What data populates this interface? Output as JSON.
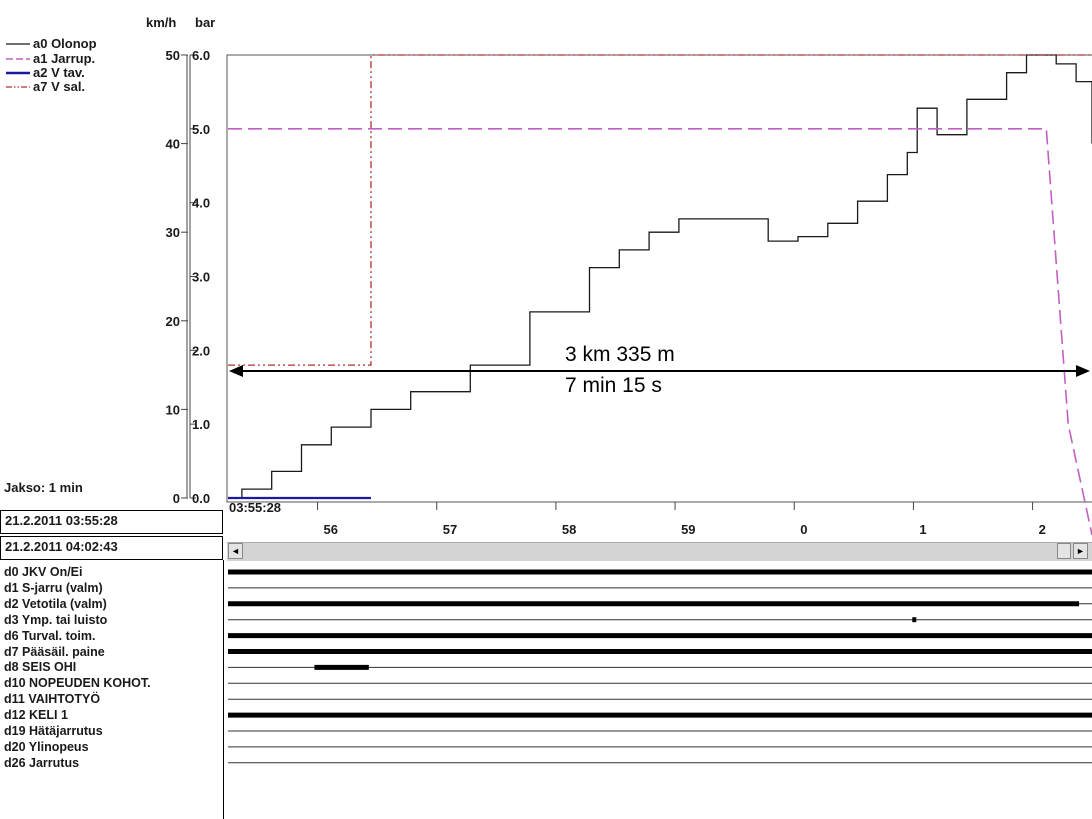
{
  "chart_data": {
    "type": "line",
    "axis_units_speed": "km/h",
    "axis_units_pressure": "bar",
    "speed_ticks": [
      "0",
      "10",
      "20",
      "30",
      "40",
      "50"
    ],
    "pressure_ticks": [
      "0.0",
      "1.0",
      "2.0",
      "3.0",
      "4.0",
      "5.0",
      "6.0"
    ],
    "speed_range": [
      0,
      50
    ],
    "pressure_range": [
      0,
      6.0
    ],
    "time_ticks": [
      "56",
      "57",
      "58",
      "59",
      "0",
      "1",
      "2"
    ],
    "start_time_label": "03:55:28",
    "period_label": "Jakso: 1 min",
    "legend": [
      {
        "name": "a0 Olonop",
        "color": "#1a1a1a",
        "dash": "solid"
      },
      {
        "name": "a1 Jarrup.",
        "color": "#c060c0",
        "dash": "dash"
      },
      {
        "name": "a2 V tav.",
        "color": "#1a1aa0",
        "dash": "solid"
      },
      {
        "name": "a7 V sal.",
        "color": "#b03030",
        "dash": "dashdot"
      }
    ],
    "series": [
      {
        "name": "a0 Olonop",
        "unit": "km/h",
        "x": [
          "03:55:28",
          "03:55:35",
          "03:55:50",
          "03:56:05",
          "03:56:20",
          "03:56:40",
          "03:57:00",
          "03:57:30",
          "03:58:00",
          "03:58:30",
          "03:58:45",
          "03:59:00",
          "03:59:15",
          "03:59:30",
          "03:59:45",
          "04:00:00",
          "04:00:15",
          "04:00:30",
          "04:00:45",
          "04:01:00",
          "04:01:10",
          "04:01:15",
          "04:01:25",
          "04:01:40",
          "04:02:00",
          "04:02:10",
          "04:02:25",
          "04:02:35",
          "04:02:43"
        ],
        "y": [
          0,
          1,
          3,
          6,
          8,
          10,
          12,
          15,
          21,
          26,
          28,
          30,
          31.5,
          31.5,
          31.5,
          29,
          29.5,
          31,
          33.5,
          36.5,
          39,
          44,
          41,
          45,
          48,
          50,
          49,
          47,
          40
        ]
      },
      {
        "name": "a1 Jarrup.",
        "unit": "bar",
        "x": [
          "03:55:28",
          "04:02:20",
          "04:02:31",
          "04:02:43"
        ],
        "y": [
          5.0,
          5.0,
          1.0,
          -0.5
        ]
      },
      {
        "name": "a2 V tav.",
        "unit": "km/h",
        "x": [
          "03:55:28",
          "03:56:40"
        ],
        "y": [
          0,
          0
        ]
      },
      {
        "name": "a7 V sal.",
        "unit": "km/h",
        "x": [
          "03:55:28",
          "03:56:40",
          "03:56:40",
          "04:02:43"
        ],
        "y": [
          15,
          15,
          50,
          50
        ]
      }
    ],
    "annotation": {
      "distance": "3 km 335 m",
      "duration": "7 min 15 s"
    }
  },
  "header": {
    "time_start": "21.2.2011 03:55:28",
    "time_end": "21.2.2011 04:02:43"
  },
  "scrollbar": {
    "left_arrow": "◄",
    "right_arrow": "►"
  },
  "digital_channels": [
    {
      "label": "d0 JKV On/Ei",
      "segments": [
        [
          0,
          1
        ]
      ]
    },
    {
      "label": "d1 S-jarru (valm)",
      "segments": []
    },
    {
      "label": "d2 Vetotila (valm)",
      "segments": [
        [
          0,
          0.985
        ]
      ]
    },
    {
      "label": "d3 Ymp. tai luisto",
      "segments": [
        [
          0.792,
          0.796
        ]
      ]
    },
    {
      "label": "d6 Turval. toim.",
      "segments": [
        [
          0,
          1
        ]
      ]
    },
    {
      "label": "d7 Pääsäil. paine",
      "segments": [
        [
          0,
          1
        ]
      ]
    },
    {
      "label": "d8 SEIS OHI",
      "segments": [
        [
          0.1,
          0.163
        ]
      ]
    },
    {
      "label": "d10 NOPEUDEN KOHOT.",
      "segments": []
    },
    {
      "label": "d11 VAIHTOTYÖ",
      "segments": []
    },
    {
      "label": "d12 KELI 1",
      "segments": [
        [
          0,
          1
        ]
      ]
    },
    {
      "label": "d19 Hätäjarrutus",
      "segments": []
    },
    {
      "label": "d20 Ylinopeus",
      "segments": []
    },
    {
      "label": "d26 Jarrutus",
      "segments": []
    }
  ],
  "colors": {
    "speed": "#1a1a1a",
    "brake_pressure": "#c060c0",
    "v_tav": "#1a1aa0",
    "v_sal": "#b03030"
  }
}
